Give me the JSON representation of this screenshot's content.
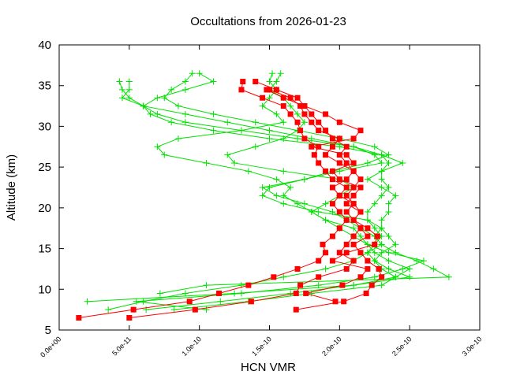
{
  "chart_data": {
    "type": "line",
    "title": "Occultations from 2026-01-23",
    "xlabel": "HCN VMR",
    "ylabel": "Altitude (km)",
    "xlim": [
      0,
      3e-10
    ],
    "ylim": [
      5,
      40
    ],
    "x_ticks": [
      "0.0e+00",
      "5.0e-11",
      "1.0e-10",
      "1.5e-10",
      "2.0e-10",
      "2.5e-10",
      "3.0e-10"
    ],
    "y_ticks": [
      "5",
      "10",
      "15",
      "20",
      "25",
      "30",
      "35",
      "40"
    ],
    "grid": false,
    "legend": "none",
    "colors": {
      "green_profiles": "#00e000",
      "red_profiles": "#ff0000"
    },
    "series": [
      {
        "color": "green",
        "marker": "plus",
        "altitude": [
          7.5,
          8.5,
          9.5,
          10.5,
          11.5,
          12.5,
          13.5,
          14.5,
          15.5,
          16.5,
          17.5,
          18.5,
          19.5,
          20.5,
          21.5,
          22.5,
          23.5,
          24.5,
          25.5,
          26.5,
          27.5,
          28.5,
          29.5,
          30.5,
          31.5,
          32.5,
          33.5,
          34.5,
          35.5
        ],
        "x": [
          3.5e-11,
          6e-11,
          9e-11,
          1.3e-10,
          1.6e-10,
          1.9e-10,
          2.1e-10,
          2.2e-10,
          2.25e-10,
          2.3e-10,
          2.25e-10,
          2.2e-10,
          2.2e-10,
          2.25e-10,
          2.3e-10,
          2.35e-10,
          2.3e-10,
          2.3e-10,
          2.35e-10,
          2.3e-10,
          2.1e-10,
          1.7e-10,
          1.3e-10,
          9e-11,
          7e-11,
          6e-11,
          5e-11,
          4.5e-11,
          4.3e-11
        ]
      },
      {
        "color": "green",
        "marker": "plus",
        "altitude": [
          9.5,
          10.5,
          11.5,
          12.5,
          13.5,
          14.5,
          15.5,
          16.5,
          17.5,
          18.5,
          19.5,
          20.5,
          21.5,
          22.5,
          23.5,
          24.5,
          25.5,
          26.5,
          27.5,
          28.5,
          29.5,
          30.5,
          31.5,
          32.5,
          33.5,
          34.5,
          35.5,
          36.5
        ],
        "x": [
          7.2e-11,
          1.05e-10,
          2.78e-10,
          2.67e-10,
          2.55e-10,
          2.4e-10,
          2.3e-10,
          2.25e-10,
          2.3e-10,
          2.3e-10,
          2.35e-10,
          2.35e-10,
          2.4e-10,
          2.3e-10,
          2.2e-10,
          2.3e-10,
          2.45e-10,
          2.3e-10,
          2e-10,
          1.5e-10,
          1.1e-10,
          8e-11,
          6.5e-11,
          6e-11,
          7e-11,
          9e-11,
          1.1e-10,
          1e-10
        ]
      },
      {
        "color": "green",
        "marker": "plus",
        "altitude": [
          7.5,
          8.5,
          9.5,
          10.5,
          11.5,
          12.5,
          13.5,
          14.5,
          15.5,
          16.5,
          17.5,
          18.5,
          19.5,
          20.5,
          21.5,
          22.5,
          23.5,
          24.5,
          25.5,
          26.5,
          27.5,
          28.5,
          29.5,
          30.5,
          31.5,
          32.5,
          33.5,
          34.5,
          35.5,
          36.5
        ],
        "x": [
          1.05e-10,
          5.5e-11,
          1.3e-10,
          1.85e-10,
          2.25e-10,
          2.45e-10,
          2.6e-10,
          2.35e-10,
          2.2e-10,
          2.15e-10,
          2.1e-10,
          1.9e-10,
          1.8e-10,
          1.7e-10,
          1.6e-10,
          1.65e-10,
          1.55e-10,
          1.35e-10,
          1.05e-10,
          7.5e-11,
          7e-11,
          8.5e-11,
          1.3e-10,
          1.6e-10,
          1.55e-10,
          1.45e-10,
          1.5e-10,
          1.55e-10,
          1.5e-10,
          1.52e-10
        ]
      },
      {
        "color": "green",
        "marker": "plus",
        "altitude": [
          7.5,
          8.5,
          9.5,
          10.5,
          11.5,
          12.5,
          13.5,
          14.5,
          15.5,
          16.5,
          17.5,
          18.5,
          19.5,
          20.5,
          21.5,
          22.5,
          23.5,
          24.5,
          25.5,
          26.5,
          27.5,
          28.5,
          29.5,
          30.5,
          31.5,
          32.5,
          33.5,
          34.5,
          35.5
        ],
        "x": [
          6.2e-11,
          1.15e-10,
          1.65e-10,
          2.1e-10,
          2.5e-10,
          2.35e-10,
          2.25e-10,
          2.3e-10,
          2.4e-10,
          2.35e-10,
          2.3e-10,
          2.2e-10,
          1.85e-10,
          1.6e-10,
          1.45e-10,
          1.5e-10,
          1.75e-10,
          2e-10,
          2.3e-10,
          2.25e-10,
          2.1e-10,
          1.8e-10,
          1.5e-10,
          1.2e-10,
          9e-11,
          6e-11,
          4.5e-11,
          5e-11,
          5e-11
        ]
      },
      {
        "color": "green",
        "marker": "plus",
        "altitude": [
          8.5,
          9.5,
          10.5,
          11.5,
          12.5,
          13.5,
          14.5,
          15.5,
          16.5,
          17.5,
          18.5,
          19.5,
          20.5,
          21.5,
          22.5,
          23.5,
          24.5,
          25.5,
          26.5,
          27.5,
          28.5,
          29.5,
          30.5,
          31.5,
          32.5,
          33.5,
          34.5,
          35.5,
          36.5
        ],
        "x": [
          2e-11,
          1.25e-10,
          2.1e-10,
          2.4e-10,
          2.3e-10,
          2.25e-10,
          2.2e-10,
          2.3e-10,
          2.25e-10,
          2.15e-10,
          2.05e-10,
          1.95e-10,
          1.75e-10,
          1.55e-10,
          1.45e-10,
          1.75e-10,
          1.95e-10,
          2.2e-10,
          2.35e-10,
          2.25e-10,
          2e-10,
          1.7e-10,
          1.4e-10,
          1.1e-10,
          8.5e-11,
          7.5e-11,
          8e-11,
          9e-11,
          9.5e-11
        ]
      },
      {
        "color": "green",
        "marker": "plus",
        "altitude": [
          7.5,
          8.5,
          9.5,
          10.5,
          11.5,
          12.5,
          13.5,
          14.5,
          15.5,
          16.5,
          17.5,
          18.5,
          19.5,
          20.5,
          21.5,
          22.5,
          23.5,
          24.5,
          25.5,
          26.5,
          27.5,
          28.5,
          29.5,
          30.5,
          31.5,
          32.5,
          33.5,
          34.5,
          35.5,
          36.5
        ],
        "x": [
          8.2e-11,
          1.35e-10,
          1.8e-10,
          2.3e-10,
          2.4e-10,
          2.5e-10,
          2.35e-10,
          2.25e-10,
          2.2e-10,
          2.1e-10,
          2e-10,
          1.9e-10,
          1.8e-10,
          1.9e-10,
          2e-10,
          2.1e-10,
          2e-10,
          1.6e-10,
          1.25e-10,
          1.2e-10,
          1.4e-10,
          1.6e-10,
          1.7e-10,
          1.75e-10,
          1.7e-10,
          1.65e-10,
          1.6e-10,
          1.5e-10,
          1.55e-10,
          1.58e-10
        ]
      },
      {
        "color": "red",
        "marker": "square",
        "altitude": [
          6.5,
          7.5,
          8.5,
          9.5,
          10.5,
          11.5,
          12.5,
          13.5,
          14.5,
          15.5,
          16.5,
          17.5,
          18.5,
          19.5,
          20.5,
          21.5,
          22.5,
          23.5,
          24.5,
          25.5,
          26.5,
          27.5,
          28.5,
          29.5,
          30.5,
          31.5,
          32.5,
          33.5,
          34.5,
          35.5
        ],
        "x": [
          1.4e-11,
          5.3e-11,
          9.3e-11,
          1.14e-10,
          1.35e-10,
          1.53e-10,
          1.7e-10,
          1.85e-10,
          1.9e-10,
          1.88e-10,
          1.95e-10,
          2e-10,
          2.05e-10,
          2e-10,
          1.95e-10,
          2e-10,
          2.05e-10,
          1.95e-10,
          1.9e-10,
          1.85e-10,
          1.82e-10,
          1.85e-10,
          1.75e-10,
          1.72e-10,
          1.7e-10,
          1.65e-10,
          1.6e-10,
          1.45e-10,
          1.3e-10,
          1.31e-10
        ]
      },
      {
        "color": "red",
        "marker": "square",
        "altitude": [
          6.5,
          7.5,
          8.5,
          9.5,
          10.5,
          11.5,
          12.5,
          13.5,
          14.5,
          15.5,
          16.5,
          17.5,
          18.5,
          19.5,
          20.5,
          21.5,
          22.5,
          23.5,
          24.5,
          25.5,
          26.5,
          27.5,
          28.5,
          29.5,
          30.5,
          31.5,
          32.5,
          33.5,
          34.5
        ],
        "x": [
          5e-11,
          9.7e-11,
          1.37e-10,
          1.69e-10,
          1.72e-10,
          1.85e-10,
          2.05e-10,
          2.1e-10,
          2e-10,
          2.05e-10,
          2.1e-10,
          2.15e-10,
          2.1e-10,
          2.05e-10,
          2.1e-10,
          2e-10,
          1.95e-10,
          2.05e-10,
          2.1e-10,
          2e-10,
          1.9e-10,
          1.95e-10,
          2e-10,
          1.85e-10,
          1.8e-10,
          1.75e-10,
          1.72e-10,
          1.65e-10,
          1.5e-10
        ]
      },
      {
        "color": "red",
        "marker": "square",
        "altitude": [
          7.5,
          8.5,
          9.5,
          10.5,
          11.5,
          12.5,
          13.5,
          14.5,
          15.5,
          16.5,
          17.5,
          18.5,
          19.5,
          20.5,
          21.5,
          22.5,
          23.5,
          24.5,
          25.5,
          26.5,
          27.5,
          28.5,
          29.5,
          30.5,
          31.5,
          32.5,
          33.5,
          34.5
        ],
        "x": [
          1.69e-10,
          2.03e-10,
          2.19e-10,
          2.23e-10,
          2.3e-10,
          2.28e-10,
          2.2e-10,
          2.15e-10,
          2.1e-10,
          2.2e-10,
          2.15e-10,
          2.1e-10,
          2.15e-10,
          2.1e-10,
          2.05e-10,
          2.1e-10,
          2.15e-10,
          2.1e-10,
          2.05e-10,
          2e-10,
          2.05e-10,
          1.95e-10,
          1.9e-10,
          1.85e-10,
          1.8e-10,
          1.75e-10,
          1.6e-10,
          1.48e-10
        ]
      },
      {
        "color": "red",
        "marker": "square",
        "altitude": [
          8.5,
          9.5,
          10.5,
          11.5,
          12.5,
          13.5,
          14.5,
          15.5,
          16.5,
          17.5,
          18.5,
          19.5,
          20.5,
          21.5,
          22.5,
          23.5,
          24.5,
          25.5,
          26.5,
          27.5,
          28.5,
          29.5,
          30.5,
          31.5,
          32.5,
          33.5,
          34.5,
          35.5
        ],
        "x": [
          1.97e-10,
          1.76e-10,
          2.02e-10,
          2.15e-10,
          2.2e-10,
          1.95e-10,
          2.05e-10,
          2.25e-10,
          2.27e-10,
          2.2e-10,
          2.1e-10,
          2.15e-10,
          2.05e-10,
          2.1e-10,
          2.15e-10,
          2e-10,
          1.95e-10,
          2.1e-10,
          2.05e-10,
          1.8e-10,
          2.1e-10,
          2.15e-10,
          2e-10,
          1.9e-10,
          1.75e-10,
          1.7e-10,
          1.55e-10,
          1.4e-10
        ]
      }
    ]
  }
}
